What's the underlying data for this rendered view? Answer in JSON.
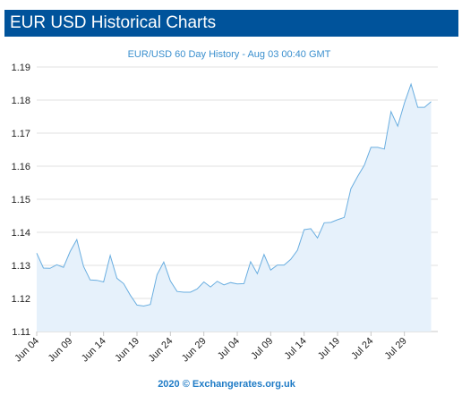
{
  "header": {
    "title": "EUR USD Historical Charts"
  },
  "chart_data": {
    "type": "area",
    "title": "EUR/USD 60 Day History - Aug 03 00:40 GMT",
    "xlabel": "",
    "ylabel": "",
    "ylim": [
      1.11,
      1.19
    ],
    "yticks": [
      "1.11",
      "1.12",
      "1.13",
      "1.14",
      "1.15",
      "1.16",
      "1.17",
      "1.18",
      "1.19"
    ],
    "xticks": [
      "Jun 04",
      "Jun 09",
      "Jun 14",
      "Jun 19",
      "Jun 24",
      "Jun 29",
      "Jul 04",
      "Jul 09",
      "Jul 14",
      "Jul 19",
      "Jul 24",
      "Jul 29"
    ],
    "grid": "horizontal",
    "line_color": "#6aaee0",
    "fill_color": "#e6f1fb",
    "series": [
      {
        "x": [
          "Jun 04",
          "Jun 05",
          "Jun 06",
          "Jun 07",
          "Jun 08",
          "Jun 09",
          "Jun 10",
          "Jun 11",
          "Jun 12",
          "Jun 13",
          "Jun 14",
          "Jun 15",
          "Jun 16",
          "Jun 17",
          "Jun 18",
          "Jun 19",
          "Jun 20",
          "Jun 21",
          "Jun 22",
          "Jun 23",
          "Jun 24",
          "Jun 25",
          "Jun 26",
          "Jun 27",
          "Jun 28",
          "Jun 29",
          "Jun 30",
          "Jul 01",
          "Jul 02",
          "Jul 03",
          "Jul 04",
          "Jul 05",
          "Jul 06",
          "Jul 07",
          "Jul 08",
          "Jul 09",
          "Jul 10",
          "Jul 11",
          "Jul 12",
          "Jul 13",
          "Jul 14",
          "Jul 15",
          "Jul 16",
          "Jul 17",
          "Jul 18",
          "Jul 19",
          "Jul 20",
          "Jul 21",
          "Jul 22",
          "Jul 23",
          "Jul 24",
          "Jul 25",
          "Jul 26",
          "Jul 27",
          "Jul 28",
          "Jul 29",
          "Jul 30",
          "Jul 31",
          "Aug 01",
          "Aug 02"
        ],
        "values": [
          1.1337,
          1.1292,
          1.1291,
          1.1302,
          1.1294,
          1.1342,
          1.1378,
          1.1297,
          1.1256,
          1.1255,
          1.125,
          1.133,
          1.1261,
          1.1245,
          1.121,
          1.118,
          1.1177,
          1.1182,
          1.1272,
          1.131,
          1.1253,
          1.1221,
          1.1219,
          1.1219,
          1.1229,
          1.125,
          1.1235,
          1.1252,
          1.1241,
          1.1248,
          1.1244,
          1.1245,
          1.1311,
          1.1275,
          1.1333,
          1.1286,
          1.1301,
          1.1301,
          1.1318,
          1.1346,
          1.1408,
          1.1411,
          1.1383,
          1.1429,
          1.143,
          1.1438,
          1.1445,
          1.1532,
          1.1569,
          1.1603,
          1.1657,
          1.1657,
          1.1652,
          1.1765,
          1.1721,
          1.1791,
          1.1848,
          1.1778,
          1.1778,
          1.1795
        ]
      }
    ],
    "credit": "2020 © Exchangerates.org.uk"
  }
}
